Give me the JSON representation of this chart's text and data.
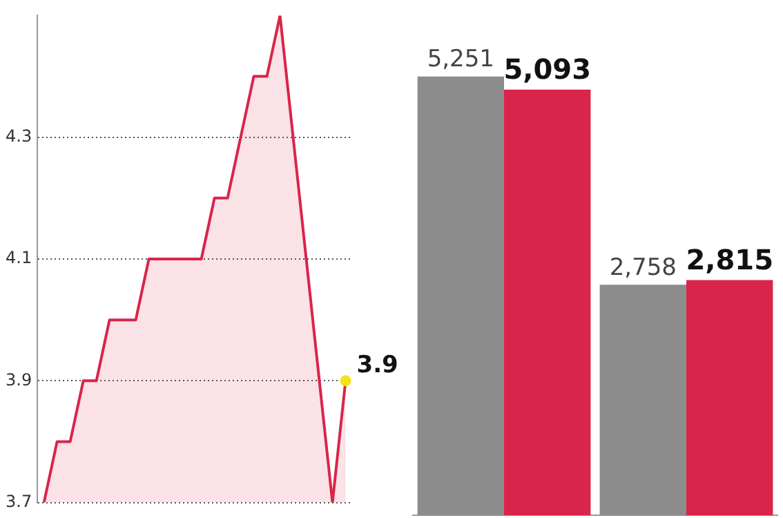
{
  "chart_data": [
    {
      "type": "area",
      "categories": [
        null,
        null,
        null,
        null,
        null,
        null,
        null,
        null,
        null,
        null,
        null,
        null,
        null,
        null,
        null,
        null,
        null,
        null,
        null,
        null,
        null,
        null,
        null,
        null
      ],
      "series": [
        {
          "color": "#d9254a",
          "values": [
            3.7,
            3.8,
            3.8,
            3.9,
            3.9,
            4.0,
            4.0,
            4.0,
            4.1,
            4.1,
            4.1,
            4.1,
            4.1,
            4.2,
            4.2,
            4.3,
            4.4,
            4.4,
            4.5,
            4.3,
            4.1,
            3.9,
            3.7,
            3.9
          ],
          "value_labels": [
            null,
            null,
            null,
            null,
            null,
            null,
            null,
            null,
            null,
            null,
            null,
            null,
            null,
            null,
            null,
            null,
            null,
            null,
            null,
            null,
            null,
            null,
            null,
            "3.9"
          ]
        }
      ],
      "ylim": [
        3.7,
        4.5
      ],
      "yticks": [
        3.7,
        3.9,
        4.1,
        4.3
      ],
      "grid": "y",
      "tick_labels": "y"
    },
    {
      "type": "bar",
      "categories": [
        null,
        null
      ],
      "series": [
        {
          "color": "#8c8c8c",
          "values": [
            5251,
            2758
          ],
          "value_labels": [
            "5,251",
            "2,758"
          ]
        },
        {
          "color": "#d9254a",
          "values": [
            5093,
            2815
          ],
          "value_labels": [
            "5,093",
            "2,815"
          ]
        }
      ],
      "tick_labels": false
    }
  ]
}
